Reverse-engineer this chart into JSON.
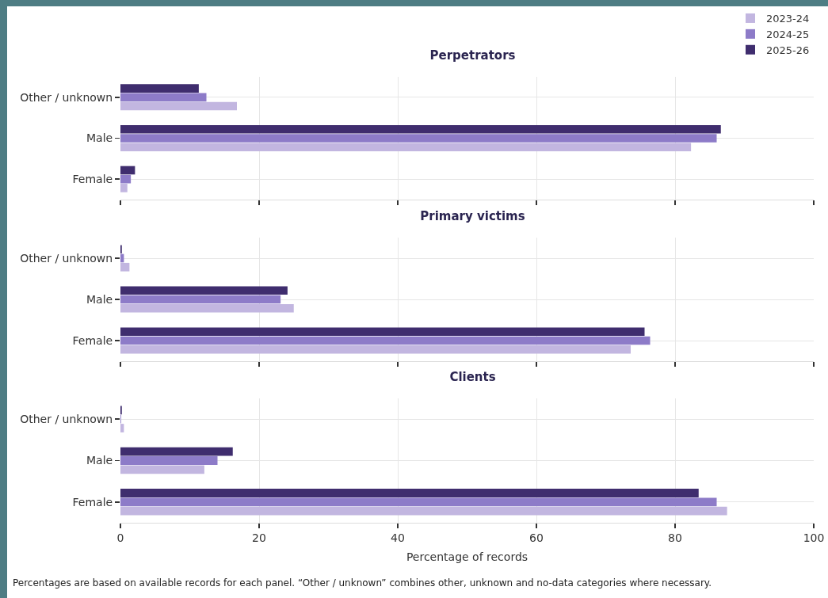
{
  "chart_data": [
    {
      "type": "bar",
      "orientation": "horizontal",
      "title": "Perpetrators",
      "categories": [
        "Other / unknown",
        "Male",
        "Female"
      ],
      "series": [
        {
          "name": "2023-24",
          "color": "#c2b6e0",
          "values": [
            16.8,
            82.3,
            1.0
          ]
        },
        {
          "name": "2024-25",
          "color": "#8d7bc8",
          "values": [
            12.4,
            86.0,
            1.5
          ]
        },
        {
          "name": "2025-26",
          "color": "#3f2d6e",
          "values": [
            11.3,
            86.6,
            2.1
          ]
        }
      ],
      "xlim": [
        0,
        100
      ],
      "xticks": [
        0,
        20,
        40,
        60,
        80,
        100
      ],
      "grid": true,
      "legend": "top right",
      "tick_labels": "y"
    },
    {
      "type": "bar",
      "orientation": "horizontal",
      "title": "Primary victims",
      "categories": [
        "Other / unknown",
        "Male",
        "Female"
      ],
      "series": [
        {
          "name": "2023-24",
          "color": "#c2b6e0",
          "values": [
            1.3,
            25.0,
            73.6
          ]
        },
        {
          "name": "2024-25",
          "color": "#8d7bc8",
          "values": [
            0.5,
            23.1,
            76.4
          ]
        },
        {
          "name": "2025-26",
          "color": "#3f2d6e",
          "values": [
            0.2,
            24.1,
            75.6
          ]
        }
      ],
      "xlim": [
        0,
        100
      ],
      "xticks": [
        0,
        20,
        40,
        60,
        80,
        100
      ],
      "grid": true,
      "tick_labels": "y"
    },
    {
      "type": "bar",
      "orientation": "horizontal",
      "title": "Clients",
      "categories": [
        "Other / unknown",
        "Male",
        "Female"
      ],
      "series": [
        {
          "name": "2023-24",
          "color": "#c2b6e0",
          "values": [
            0.5,
            12.1,
            87.5
          ]
        },
        {
          "name": "2024-25",
          "color": "#8d7bc8",
          "values": [
            0.1,
            14.0,
            86.0
          ]
        },
        {
          "name": "2025-26",
          "color": "#3f2d6e",
          "values": [
            0.2,
            16.2,
            83.4
          ]
        }
      ],
      "xlim": [
        0,
        100
      ],
      "xticks": [
        0,
        20,
        40,
        60,
        80,
        100
      ],
      "grid": true,
      "xlabel": "Percentage of records",
      "annotations": [
        "Percentages are based on available records for each panel. “Other / unknown” combines other, unknown and no-data categories where necessary."
      ]
    }
  ]
}
